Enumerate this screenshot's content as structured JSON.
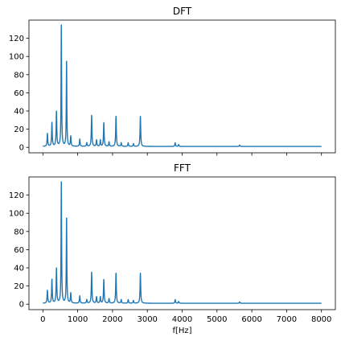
{
  "chart_data": [
    {
      "type": "line",
      "title": "DFT",
      "xlabel": "",
      "ylabel": "",
      "xlim": [
        -400,
        8400
      ],
      "ylim": [
        -6,
        140
      ],
      "x_ticks": [
        0,
        1000,
        2000,
        3000,
        4000,
        5000,
        6000,
        7000,
        8000
      ],
      "x_tick_labels_visible": false,
      "y_ticks": [
        0,
        20,
        40,
        60,
        80,
        100,
        120
      ],
      "grid": false,
      "color": "#1f77b4",
      "baseline": 1.0,
      "x_range": [
        0,
        8000
      ],
      "peaks": [
        {
          "f": 130,
          "mag": 14
        },
        {
          "f": 260,
          "mag": 26
        },
        {
          "f": 390,
          "mag": 38
        },
        {
          "f": 530,
          "mag": 133
        },
        {
          "f": 680,
          "mag": 93
        },
        {
          "f": 800,
          "mag": 11
        },
        {
          "f": 1060,
          "mag": 8
        },
        {
          "f": 1260,
          "mag": 4
        },
        {
          "f": 1400,
          "mag": 34
        },
        {
          "f": 1540,
          "mag": 7
        },
        {
          "f": 1650,
          "mag": 7
        },
        {
          "f": 1750,
          "mag": 26
        },
        {
          "f": 1900,
          "mag": 5
        },
        {
          "f": 2100,
          "mag": 33
        },
        {
          "f": 2250,
          "mag": 4
        },
        {
          "f": 2450,
          "mag": 4
        },
        {
          "f": 2600,
          "mag": 3
        },
        {
          "f": 2800,
          "mag": 33
        },
        {
          "f": 3800,
          "mag": 4
        },
        {
          "f": 3900,
          "mag": 2
        },
        {
          "f": 5650,
          "mag": 1.5
        }
      ]
    },
    {
      "type": "line",
      "title": "FFT",
      "xlabel": "f[Hz]",
      "ylabel": "",
      "xlim": [
        -400,
        8400
      ],
      "ylim": [
        -6,
        140
      ],
      "x_ticks": [
        0,
        1000,
        2000,
        3000,
        4000,
        5000,
        6000,
        7000,
        8000
      ],
      "x_tick_labels_visible": true,
      "y_ticks": [
        0,
        20,
        40,
        60,
        80,
        100,
        120
      ],
      "grid": false,
      "color": "#1f77b4",
      "baseline": 1.0,
      "x_range": [
        0,
        8000
      ],
      "peaks": [
        {
          "f": 130,
          "mag": 14
        },
        {
          "f": 260,
          "mag": 26
        },
        {
          "f": 390,
          "mag": 38
        },
        {
          "f": 530,
          "mag": 133
        },
        {
          "f": 680,
          "mag": 93
        },
        {
          "f": 800,
          "mag": 11
        },
        {
          "f": 1060,
          "mag": 8
        },
        {
          "f": 1260,
          "mag": 4
        },
        {
          "f": 1400,
          "mag": 34
        },
        {
          "f": 1540,
          "mag": 7
        },
        {
          "f": 1650,
          "mag": 7
        },
        {
          "f": 1750,
          "mag": 26
        },
        {
          "f": 1900,
          "mag": 5
        },
        {
          "f": 2100,
          "mag": 33
        },
        {
          "f": 2250,
          "mag": 4
        },
        {
          "f": 2450,
          "mag": 4
        },
        {
          "f": 2600,
          "mag": 3
        },
        {
          "f": 2800,
          "mag": 33
        },
        {
          "f": 3800,
          "mag": 4
        },
        {
          "f": 3900,
          "mag": 2
        },
        {
          "f": 5650,
          "mag": 1.5
        }
      ]
    }
  ]
}
